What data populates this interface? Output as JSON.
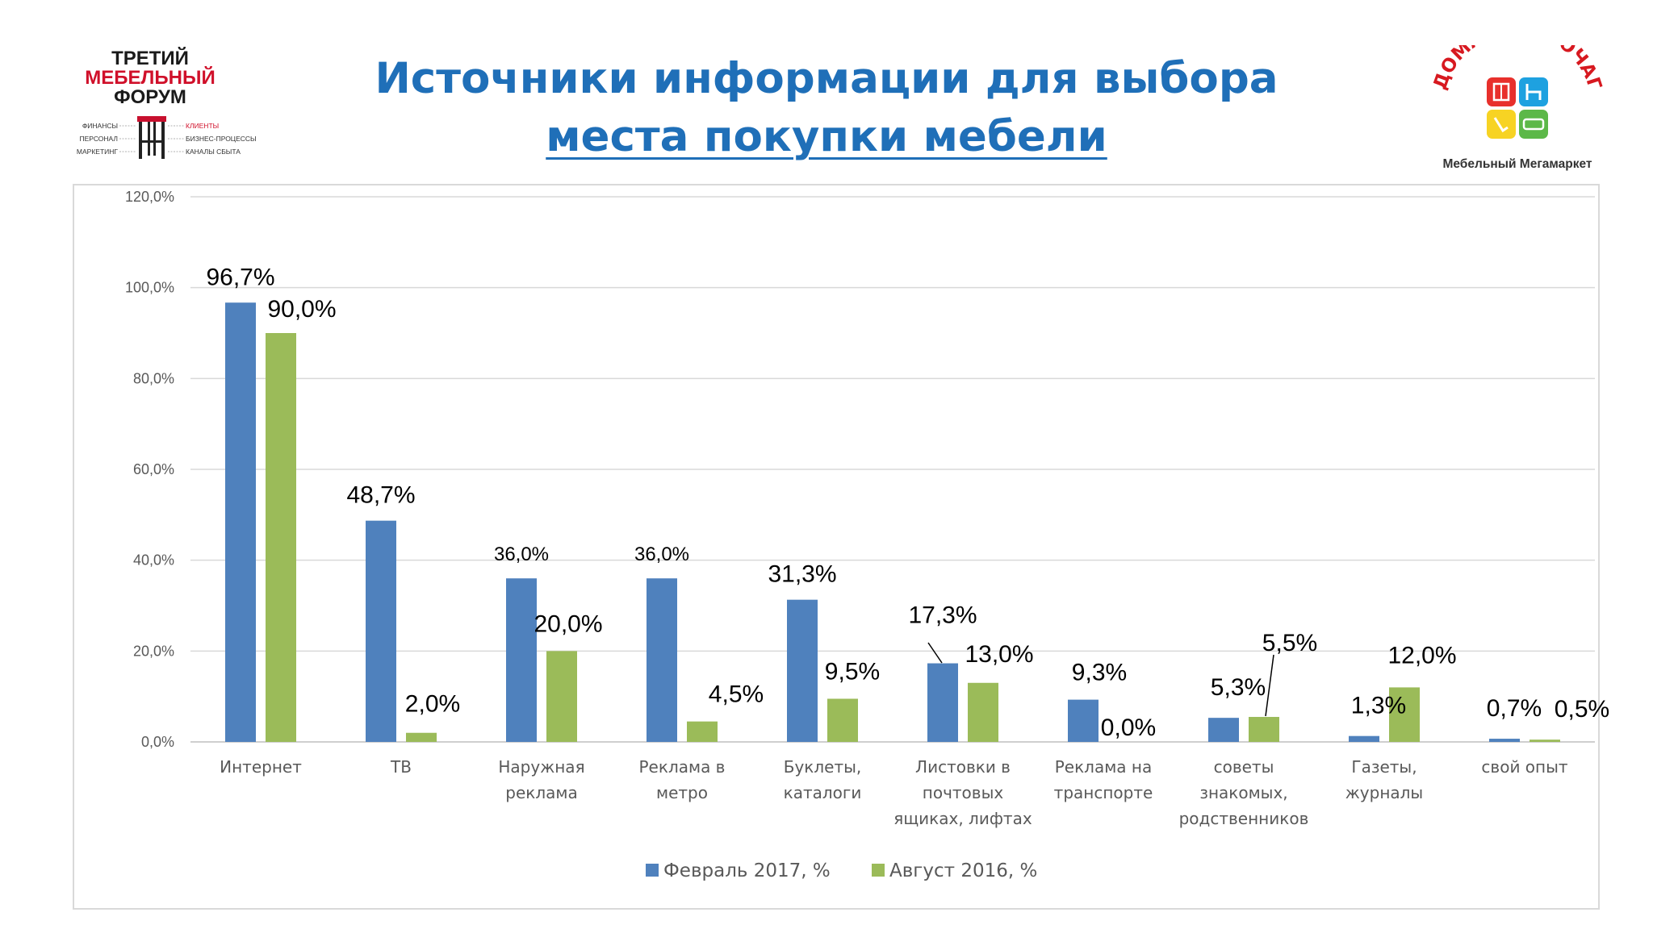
{
  "slide": {
    "title_line1": "Источники информации для выбора",
    "title_line2": "места покупки мебели"
  },
  "forum_logo": {
    "line1": "ТРЕТИЙ",
    "line2": "МЕБЕЛЬНЫЙ",
    "line3": "ФОРУМ",
    "left_items": [
      "ФИНАНСЫ",
      "ПЕРСОНАЛ",
      "МАРКЕТИНГ"
    ],
    "right_items": [
      "КЛИЕНТЫ",
      "БИЗНЕС-ПРОЦЕССЫ",
      "КАНАЛЫ СБЫТА"
    ],
    "color_dark": "#1a1a1a",
    "color_red": "#d0102a"
  },
  "store_logo": {
    "name": "ДОМАШНИЙ ОЧАГ",
    "tagline": "Мебельный Мегамаркет",
    "colors": [
      "#e8302c",
      "#1ea1e0",
      "#f7d323",
      "#5cb848"
    ]
  },
  "chart_data": {
    "type": "bar",
    "categories": [
      [
        "Интернет"
      ],
      [
        "ТВ"
      ],
      [
        "Наружная",
        "реклама"
      ],
      [
        "Реклама в",
        "метро"
      ],
      [
        "Буклеты,",
        "каталоги"
      ],
      [
        "Листовки в",
        "почтовых",
        "ящиках, лифтах"
      ],
      [
        "Реклама на",
        "транспорте"
      ],
      [
        "советы",
        "знакомых,",
        "родственников"
      ],
      [
        "Газеты,",
        "журналы"
      ],
      [
        "свой опыт"
      ]
    ],
    "series": [
      {
        "name": "Февраль 2017, %",
        "color": "#4f81bd",
        "values": [
          96.7,
          48.7,
          36.0,
          36.0,
          31.3,
          17.3,
          9.3,
          5.3,
          1.3,
          0.7
        ],
        "labels": [
          "96,7%",
          "48,7%",
          "36,0%",
          "36,0%",
          "31,3%",
          "17,3%",
          "9,3%",
          "5,3%",
          "1,3%",
          "0,7%"
        ]
      },
      {
        "name": "Август 2016, %",
        "color": "#9bbb59",
        "values": [
          90.0,
          2.0,
          20.0,
          4.5,
          9.5,
          13.0,
          0.0,
          5.5,
          12.0,
          0.5
        ],
        "labels": [
          "90,0%",
          "2,0%",
          "20,0%",
          "4,5%",
          "9,5%",
          "13,0%",
          "0,0%",
          "5,5%",
          "12,0%",
          "0,5%"
        ]
      }
    ],
    "ylim": [
      0,
      120
    ],
    "yticks": [
      "0,0%",
      "20,0%",
      "40,0%",
      "60,0%",
      "80,0%",
      "100,0%",
      "120,0%"
    ],
    "grid": true,
    "legend_position": "bottom"
  }
}
